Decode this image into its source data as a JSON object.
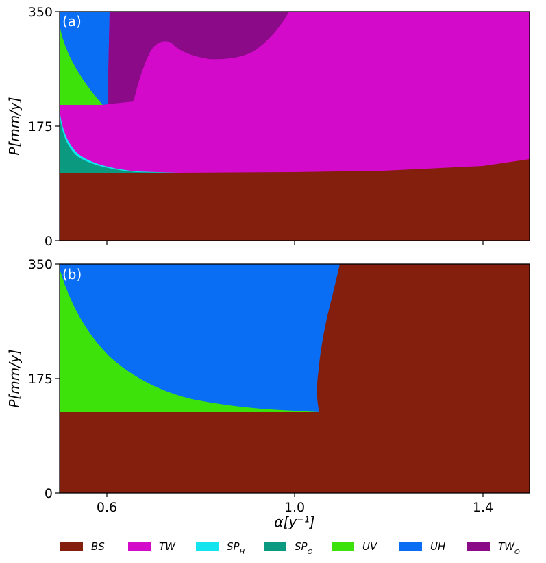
{
  "chart_data": [
    {
      "type": "area",
      "panel_label": "(a)",
      "xlabel": "",
      "ylabel": "P[mm/y]",
      "xlim": [
        0.5,
        1.5
      ],
      "ylim": [
        0,
        350
      ],
      "yticks": [
        0,
        175,
        350
      ],
      "ytick_labels": [
        "0",
        "175",
        "350"
      ],
      "xticks": [],
      "regions": [
        {
          "name": "BS",
          "description": "bottom region",
          "boundary_top": [
            [
              0.5,
              104
            ],
            [
              0.75,
              104
            ],
            [
              1.0,
              105
            ],
            [
              1.2,
              106
            ],
            [
              1.4,
              114
            ],
            [
              1.5,
              125
            ]
          ]
        },
        {
          "name": "TW",
          "region": "upper main region"
        },
        {
          "name": "SP_O",
          "boundary": [
            [
              0.5,
              104
            ],
            [
              0.5,
              200
            ],
            [
              0.53,
              148
            ],
            [
              0.6,
              122
            ],
            [
              0.75,
              104
            ]
          ]
        },
        {
          "name": "SP_H",
          "boundary": "thin band between SP_O and TW"
        },
        {
          "name": "UV",
          "boundary": [
            [
              0.5,
              335
            ],
            [
              0.5,
              207
            ],
            [
              0.59,
              207
            ]
          ]
        },
        {
          "name": "UH",
          "boundary": [
            [
              0.5,
              350
            ],
            [
              0.6,
              350
            ],
            [
              0.6,
              207
            ],
            [
              0.53,
              290
            ]
          ]
        },
        {
          "name": "TW_O",
          "boundary": [
            [
              0.6,
              350
            ],
            [
              1.0,
              350
            ],
            [
              0.95,
              320
            ],
            [
              0.82,
              277
            ],
            [
              0.72,
              300
            ],
            [
              0.67,
              260
            ],
            [
              0.65,
              208
            ],
            [
              0.6,
              208
            ]
          ]
        }
      ]
    },
    {
      "type": "area",
      "panel_label": "(b)",
      "xlabel": "α[y⁻¹]",
      "ylabel": "P[mm/y]",
      "xlim": [
        0.5,
        1.5
      ],
      "ylim": [
        0,
        350
      ],
      "yticks": [
        0,
        175,
        350
      ],
      "ytick_labels": [
        "0",
        "175",
        "350"
      ],
      "xticks": [
        0.6,
        1.0,
        1.4
      ],
      "xtick_labels": [
        "0.6",
        "1.0",
        "1.4"
      ],
      "regions": [
        {
          "name": "BS",
          "boundary_top": [
            [
              0.5,
              123
            ],
            [
              1.05,
              123
            ]
          ],
          "right_boundary": [
            [
              1.05,
              123
            ],
            [
              1.045,
              175
            ],
            [
              1.07,
              270
            ],
            [
              1.095,
              350
            ]
          ]
        },
        {
          "name": "UV",
          "boundary": [
            [
              0.5,
              123
            ],
            [
              0.5,
              345
            ],
            [
              0.55,
              270
            ],
            [
              0.6,
              210
            ],
            [
              0.7,
              160
            ],
            [
              0.8,
              138
            ],
            [
              1.0,
              126
            ],
            [
              1.05,
              123
            ]
          ]
        },
        {
          "name": "UH",
          "boundary": "region between UV and BS"
        }
      ]
    }
  ],
  "legend": {
    "placement": "bottom",
    "items": [
      {
        "label": "BS",
        "sub": "",
        "color": "#841f0e"
      },
      {
        "label": "TW",
        "sub": "",
        "color": "#d30ac9"
      },
      {
        "label": "SP",
        "sub": "H",
        "color": "#14e4ee"
      },
      {
        "label": "SP",
        "sub": "O",
        "color": "#0b9a80"
      },
      {
        "label": "UV",
        "sub": "",
        "color": "#3de20b"
      },
      {
        "label": "UH",
        "sub": "",
        "color": "#0a6ef5"
      },
      {
        "label": "TW",
        "sub": "O",
        "color": "#8a0a88"
      }
    ]
  }
}
